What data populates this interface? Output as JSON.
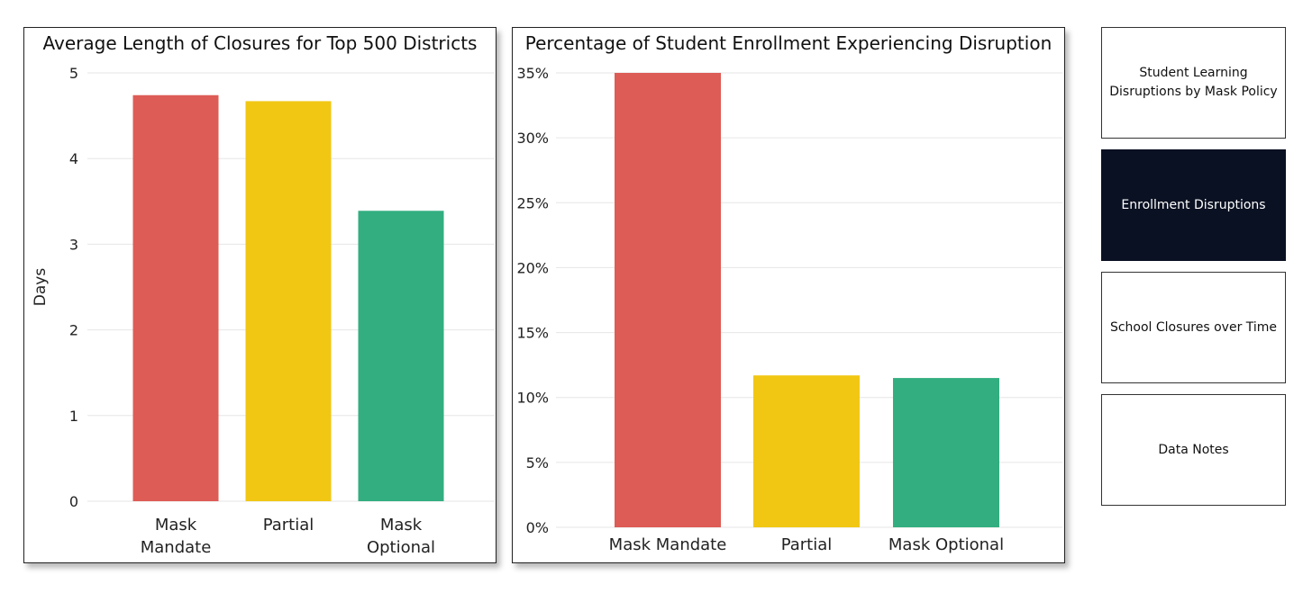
{
  "nav": {
    "buttons": [
      {
        "label": "Student Learning Disruptions by Mask Policy",
        "active": false
      },
      {
        "label": "Enrollment Disruptions",
        "active": true
      },
      {
        "label": "School Closures over Time",
        "active": false
      },
      {
        "label": "Data Notes",
        "active": false
      }
    ]
  },
  "colors": {
    "mask_mandate": "#dd5c55",
    "partial": "#f1c714",
    "mask_optional": "#33ae80",
    "active_nav": "#0a1122"
  },
  "chart_data": [
    {
      "type": "bar",
      "title": "Average Length of Closures for Top 500 Districts",
      "xlabel": "",
      "ylabel": "Days",
      "categories": [
        "Mask Mandate",
        "Partial",
        "Mask Optional"
      ],
      "category_lines": [
        [
          "Mask",
          "Mandate"
        ],
        [
          "Partial"
        ],
        [
          "Mask",
          "Optional"
        ]
      ],
      "values": [
        4.74,
        4.67,
        3.39
      ],
      "ylim": [
        0,
        5
      ],
      "yticks": [
        0,
        1,
        2,
        3,
        4,
        5
      ],
      "ytick_labels": [
        "0",
        "1",
        "2",
        "3",
        "4",
        "5"
      ],
      "grid": true,
      "colors": [
        "#dd5c55",
        "#f1c714",
        "#33ae80"
      ]
    },
    {
      "type": "bar",
      "title": "Percentage of Student Enrollment Experiencing Disruption",
      "xlabel": "",
      "ylabel": "",
      "categories": [
        "Mask Mandate",
        "Partial",
        "Mask Optional"
      ],
      "category_lines": [
        [
          "Mask Mandate"
        ],
        [
          "Partial"
        ],
        [
          "Mask Optional"
        ]
      ],
      "values": [
        35.0,
        11.7,
        11.5
      ],
      "ylim": [
        0,
        35
      ],
      "yticks": [
        0,
        5,
        10,
        15,
        20,
        25,
        30,
        35
      ],
      "ytick_labels": [
        "0%",
        "5%",
        "10%",
        "15%",
        "20%",
        "25%",
        "30%",
        "35%"
      ],
      "grid": true,
      "colors": [
        "#dd5c55",
        "#f1c714",
        "#33ae80"
      ]
    }
  ]
}
